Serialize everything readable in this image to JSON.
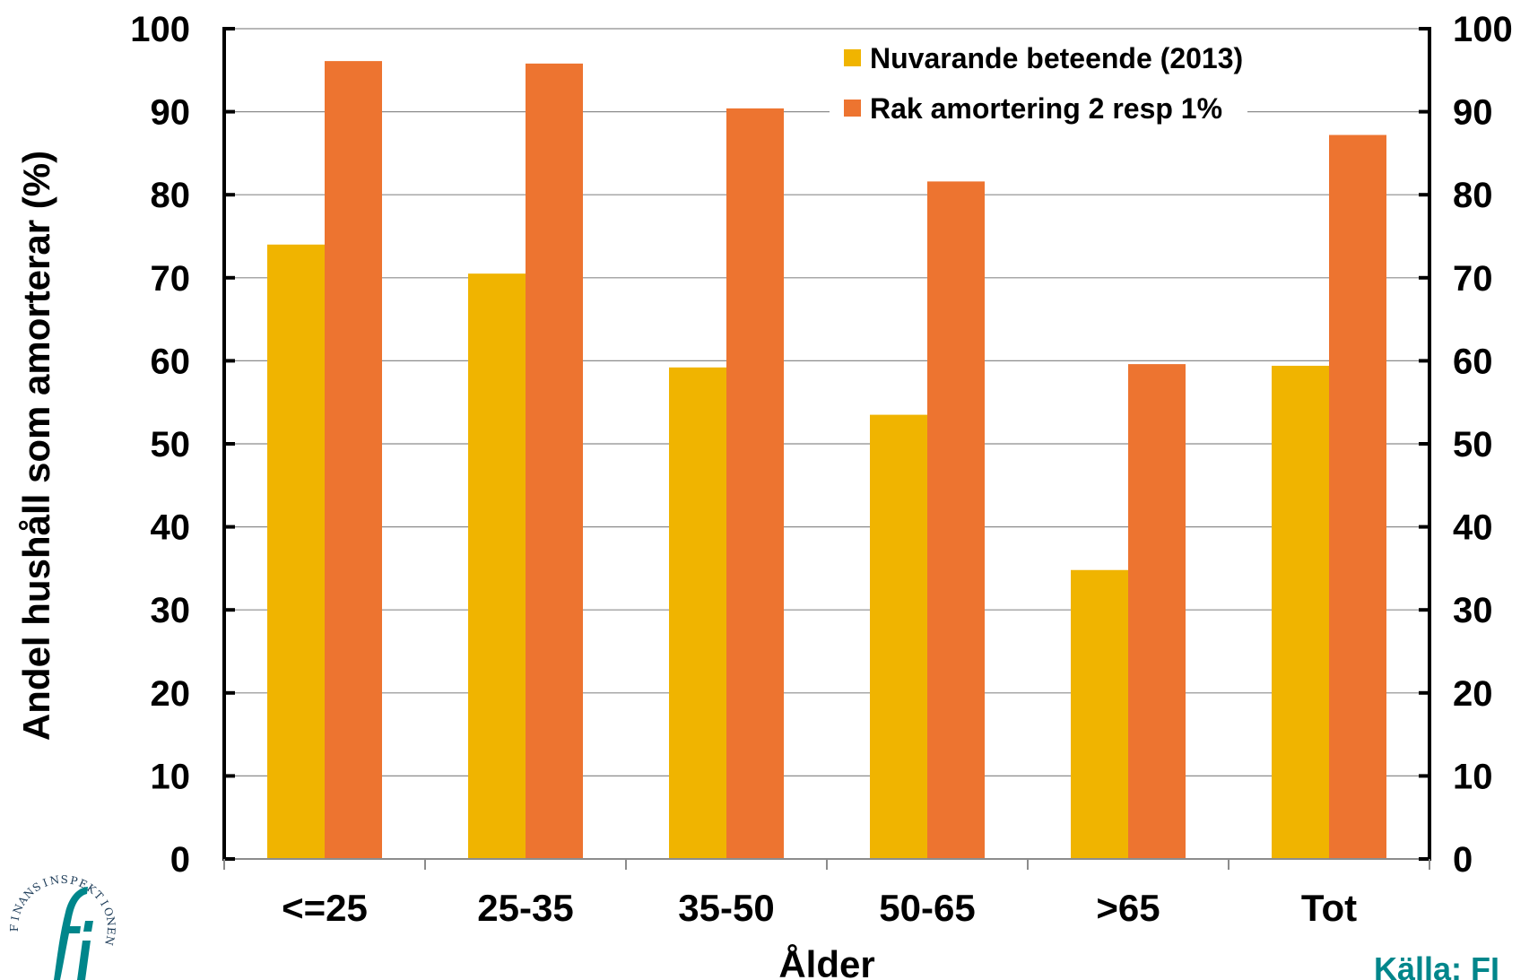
{
  "chart_data": {
    "type": "bar",
    "categories": [
      "<=25",
      "25-35",
      "35-50",
      "50-65",
      ">65",
      "Tot"
    ],
    "series": [
      {
        "name": "Nuvarande beteende (2013)",
        "color": "#F0B400",
        "values": [
          74,
          70.5,
          59.2,
          53.5,
          34.8,
          59.4
        ]
      },
      {
        "name": "Rak amortering 2 resp 1%",
        "color": "#ED7430",
        "values": [
          96.1,
          95.8,
          90.4,
          81.6,
          59.6,
          87.2
        ]
      }
    ],
    "xlabel": "Ålder",
    "ylabel": "Andel hushåll som amorterar (%)",
    "ylim": [
      0,
      100
    ],
    "yticks": [
      0,
      10,
      20,
      30,
      40,
      50,
      60,
      70,
      80,
      90,
      100
    ],
    "secondary_y_axis": true,
    "grid": true,
    "legend_position": "top-right"
  },
  "source": {
    "text": "Källa: FI",
    "color": "#00868B"
  },
  "logo": {
    "name": "finansinspektionen-logo",
    "text": "FINANSINSPEKTIONEN",
    "mark": "fi"
  }
}
